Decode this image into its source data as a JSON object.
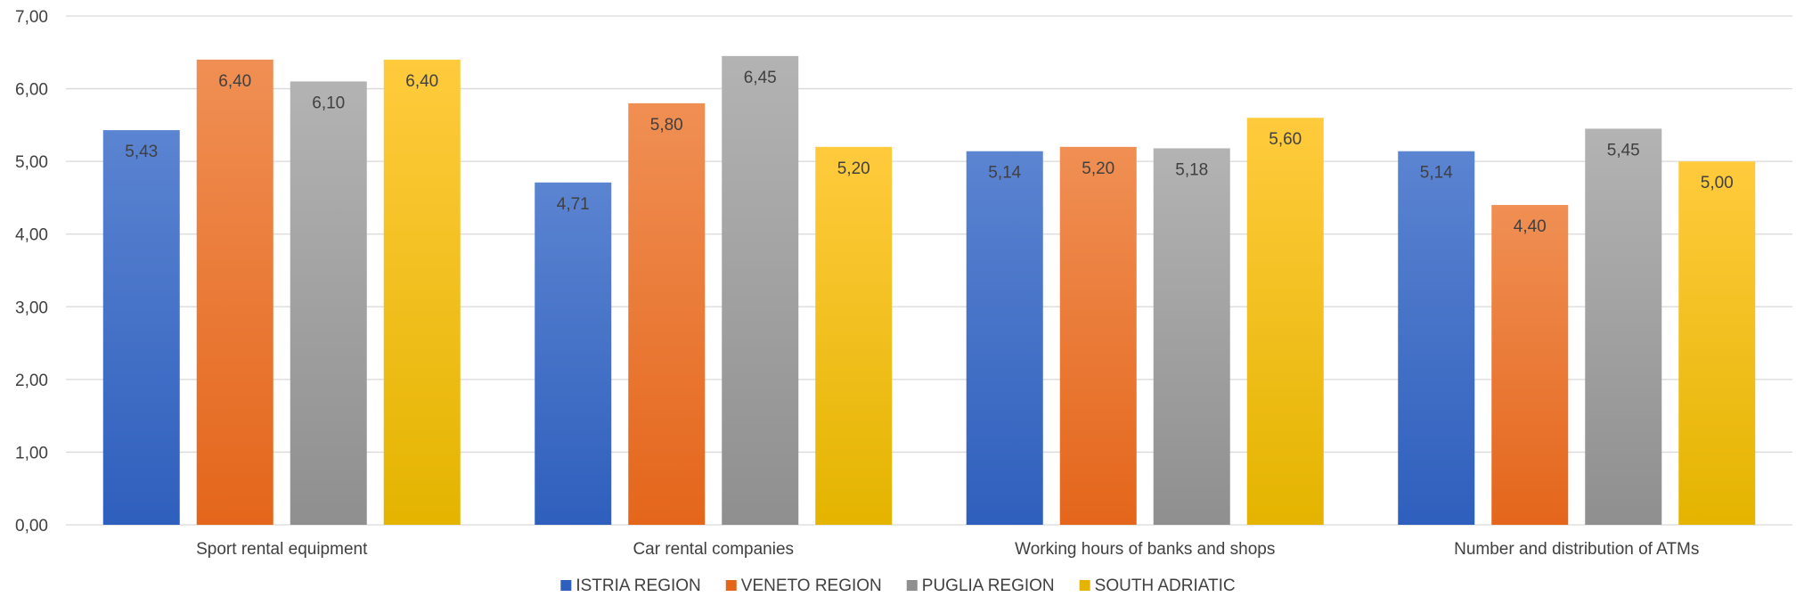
{
  "chart_data": {
    "type": "bar",
    "title": "",
    "xlabel": "",
    "ylabel": "",
    "ylim": [
      0,
      7
    ],
    "ytick_step": 1,
    "ytick_decimal_separator": ",",
    "grid": true,
    "legend_position": "bottom",
    "categories": [
      "Sport rental equipment",
      "Car rental companies",
      "Working hours of banks and shops",
      "Number and distribution of ATMs"
    ],
    "series": [
      {
        "name": "ISTRIA REGION",
        "values": [
          5.43,
          4.71,
          5.14,
          5.14
        ],
        "labels": [
          "5,43",
          "4,71",
          "5,14",
          "5,14"
        ],
        "color_top": "#5b84d1",
        "color_bottom": "#2f5fbd"
      },
      {
        "name": "VENETO REGION",
        "values": [
          6.4,
          5.8,
          5.2,
          4.4
        ],
        "labels": [
          "6,40",
          "5,80",
          "5,20",
          "4,40"
        ],
        "color_top": "#f08f54",
        "color_bottom": "#e4661b"
      },
      {
        "name": "PUGLIA REGION",
        "values": [
          6.1,
          6.45,
          5.18,
          5.45
        ],
        "labels": [
          "6,10",
          "6,45",
          "5,18",
          "5,45"
        ],
        "color_top": "#b3b3b3",
        "color_bottom": "#8f8f8f"
      },
      {
        "name": "SOUTH ADRIATIC",
        "values": [
          6.4,
          5.2,
          5.6,
          5.0
        ],
        "labels": [
          "6,40",
          "5,20",
          "5,60",
          "5,00"
        ],
        "color_top": "#ffcb3d",
        "color_bottom": "#e4b400"
      }
    ]
  }
}
